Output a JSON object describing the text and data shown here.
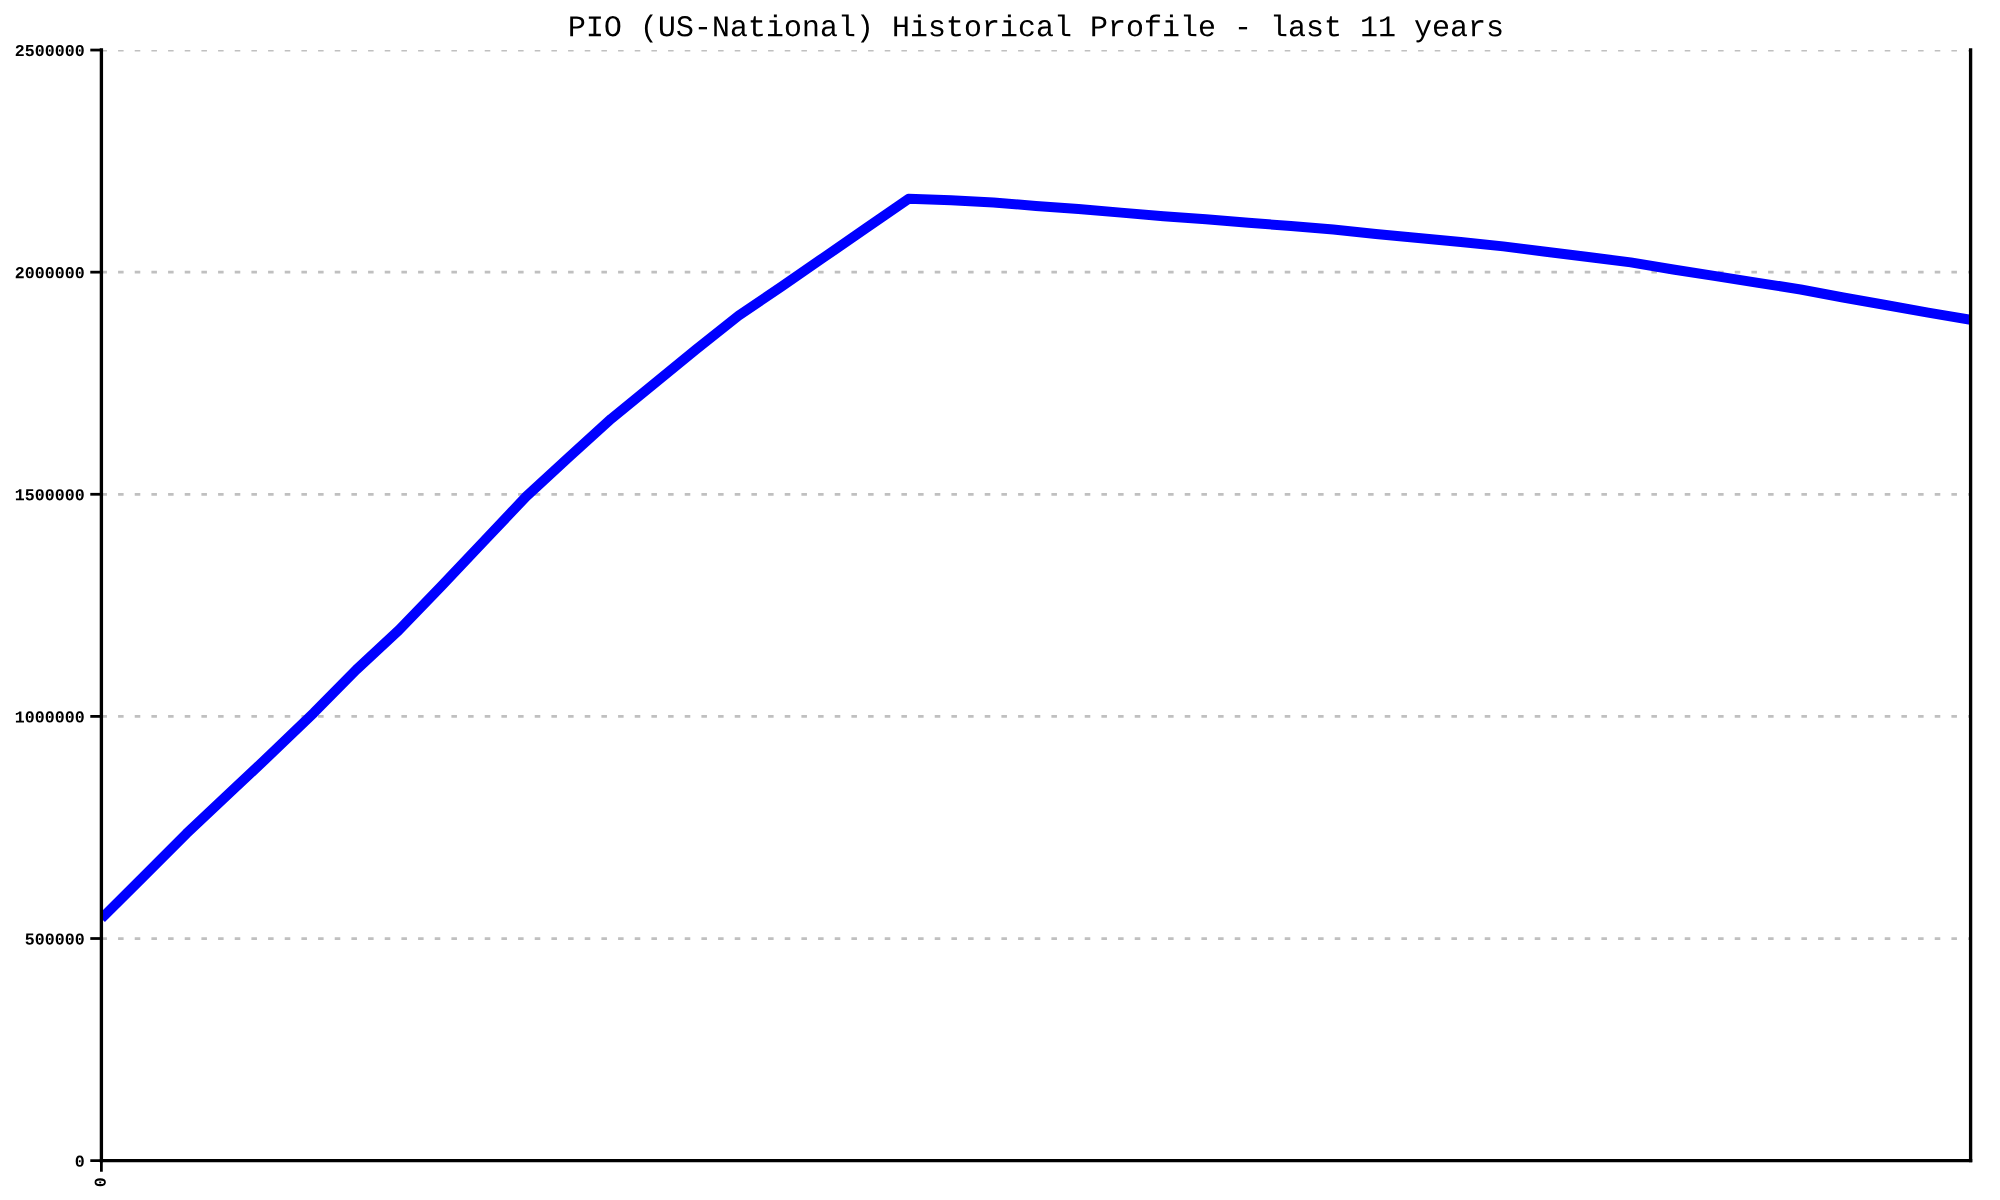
{
  "chart_data": {
    "type": "line",
    "title": "PIO (US-National) Historical Profile - last 11 years",
    "categories": [
      "0",
      null,
      null,
      null,
      null,
      null,
      null,
      null,
      null,
      null,
      null,
      null,
      null,
      null,
      null,
      null,
      null,
      null,
      null,
      null,
      null,
      null,
      null,
      null,
      null,
      null,
      null,
      null,
      null,
      null,
      null,
      null,
      null,
      null,
      null,
      null,
      null,
      null,
      null,
      null,
      null,
      null,
      null,
      null,
      null
    ],
    "series": [
      {
        "color": "#0000ff",
        "values": [
          545000,
          640000,
          736000,
          826000,
          916000,
          1008000,
          1105000,
          1194000,
          1293000,
          1394000,
          1495000,
          1583000,
          1670000,
          1748000,
          1826000,
          1902000,
          1967000,
          2033000,
          2099000,
          2165000,
          2162000,
          2157000,
          2149000,
          2142000,
          2134000,
          2126000,
          2119000,
          2111000,
          2104000,
          2096000,
          2086000,
          2077000,
          2068000,
          2058000,
          2046000,
          2034000,
          2022000,
          2006000,
          1991000,
          1976000,
          1961000,
          1943000,
          1926000,
          1909000,
          1893000
        ]
      }
    ],
    "ylim": [
      0,
      2500000
    ],
    "yticks": [
      0,
      500000,
      1000000,
      1500000,
      2000000,
      2500000
    ],
    "grid": "y"
  }
}
